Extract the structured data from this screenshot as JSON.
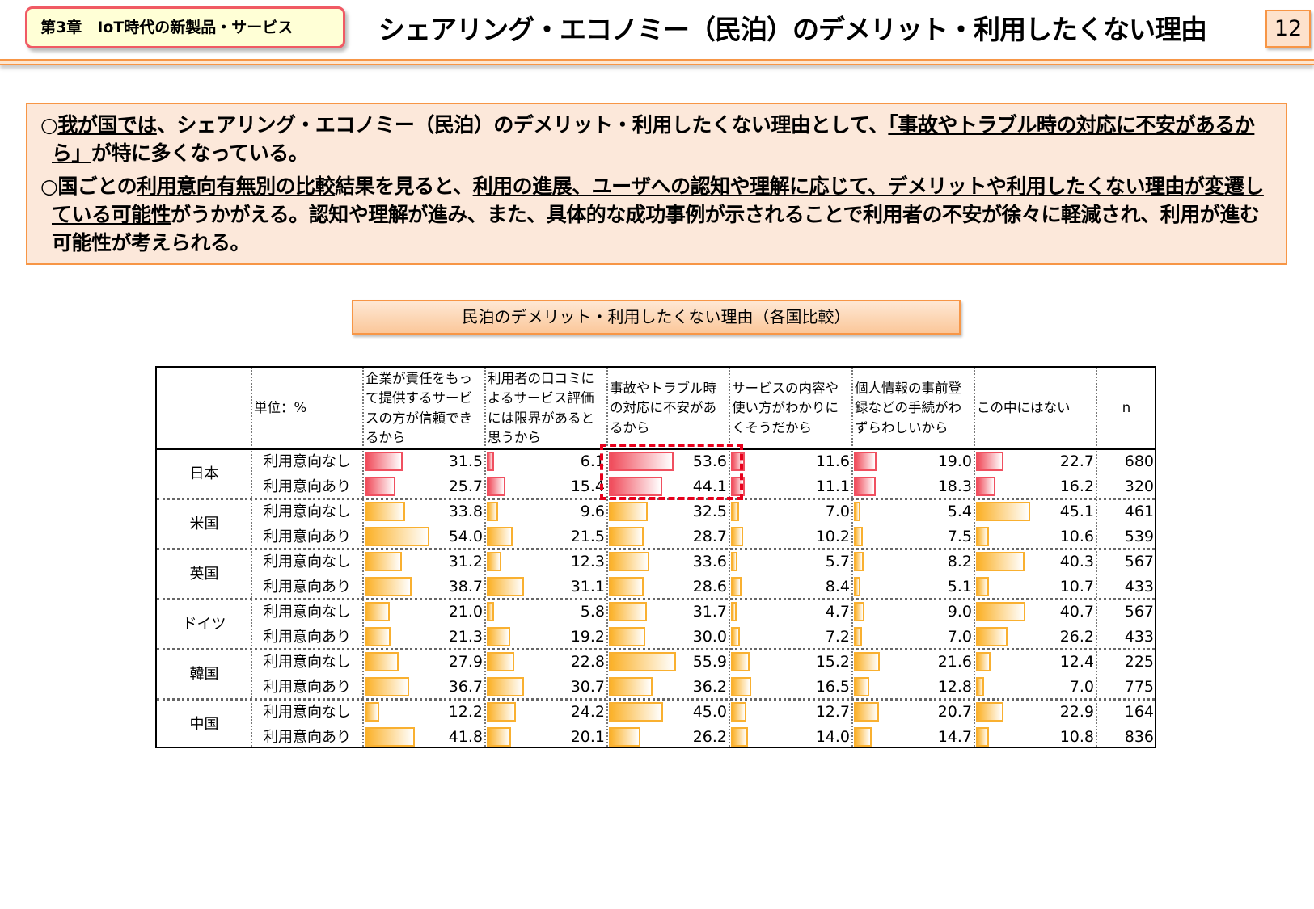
{
  "header": {
    "chapter": "第3章　IoT時代の新製品・サービス",
    "title": "シェアリング・エコノミー（民泊）のデメリット・利用したくない理由",
    "page": "12"
  },
  "summary": {
    "p1": [
      "○",
      "我が国では",
      "、シェアリング・エコノミー（民泊）のデメリット・利用したくない理由として、",
      "「事故やトラブル時の対応に不安があるから」",
      "が特に多くなっている。"
    ],
    "p2": [
      "○国ごとの",
      "利用意向有無別の比較",
      "結果を見ると、",
      "利用の進展、ユーザへの認知や理解に応じて、デメリットや利用したくない理由が変遷している可能性",
      "がうかがえる。認知や理解が進み、また、具体的な成功事例が示されることで利用者の不安が徐々に軽減され、利用が進む可能性が考えられる。"
    ]
  },
  "table": {
    "title": "民泊のデメリット・利用したくない理由（各国比較）",
    "unit": "単位：%",
    "columns": [
      "企業が責任をもって提供するサービスの方が信頼できるから",
      "利用者の口コミによるサービス評価には限界があると思うから",
      "事故やトラブル時の対応に不安があるから",
      "サービスの内容や使い方がわかりにくそうだから",
      "個人情報の事前登録などの手続がわずらわしいから",
      "この中にはない",
      "n"
    ],
    "colors": {
      "japan": "#f04b5a",
      "others": "#fbb128",
      "highlight": "#e8001c"
    },
    "groups": [
      {
        "country": "日本",
        "rows": [
          {
            "label": "利用意向なし",
            "values": [
              "31.5",
              "6.1",
              "53.6",
              "11.6",
              "19.0",
              "22.7"
            ],
            "n": "680"
          },
          {
            "label": "利用意向あり",
            "values": [
              "25.7",
              "15.4",
              "44.1",
              "11.1",
              "18.3",
              "16.2"
            ],
            "n": "320"
          }
        ]
      },
      {
        "country": "米国",
        "rows": [
          {
            "label": "利用意向なし",
            "values": [
              "33.8",
              "9.6",
              "32.5",
              "7.0",
              "5.4",
              "45.1"
            ],
            "n": "461"
          },
          {
            "label": "利用意向あり",
            "values": [
              "54.0",
              "21.5",
              "28.7",
              "10.2",
              "7.5",
              "10.6"
            ],
            "n": "539"
          }
        ]
      },
      {
        "country": "英国",
        "rows": [
          {
            "label": "利用意向なし",
            "values": [
              "31.2",
              "12.3",
              "33.6",
              "5.7",
              "8.2",
              "40.3"
            ],
            "n": "567"
          },
          {
            "label": "利用意向あり",
            "values": [
              "38.7",
              "31.1",
              "28.6",
              "8.4",
              "5.1",
              "10.7"
            ],
            "n": "433"
          }
        ]
      },
      {
        "country": "ドイツ",
        "rows": [
          {
            "label": "利用意向なし",
            "values": [
              "21.0",
              "5.8",
              "31.7",
              "4.7",
              "9.0",
              "40.7"
            ],
            "n": "567"
          },
          {
            "label": "利用意向あり",
            "values": [
              "21.3",
              "19.2",
              "30.0",
              "7.2",
              "7.0",
              "26.2"
            ],
            "n": "433"
          }
        ]
      },
      {
        "country": "韓国",
        "rows": [
          {
            "label": "利用意向なし",
            "values": [
              "27.9",
              "22.8",
              "55.9",
              "15.2",
              "21.6",
              "12.4"
            ],
            "n": "225"
          },
          {
            "label": "利用意向あり",
            "values": [
              "36.7",
              "30.7",
              "36.2",
              "16.5",
              "12.8",
              "7.0"
            ],
            "n": "775"
          }
        ]
      },
      {
        "country": "中国",
        "rows": [
          {
            "label": "利用意向なし",
            "values": [
              "12.2",
              "24.2",
              "45.0",
              "12.7",
              "20.7",
              "22.9"
            ],
            "n": "164"
          },
          {
            "label": "利用意向あり",
            "values": [
              "41.8",
              "20.1",
              "26.2",
              "14.0",
              "14.7",
              "10.8"
            ],
            "n": "836"
          }
        ]
      }
    ]
  }
}
